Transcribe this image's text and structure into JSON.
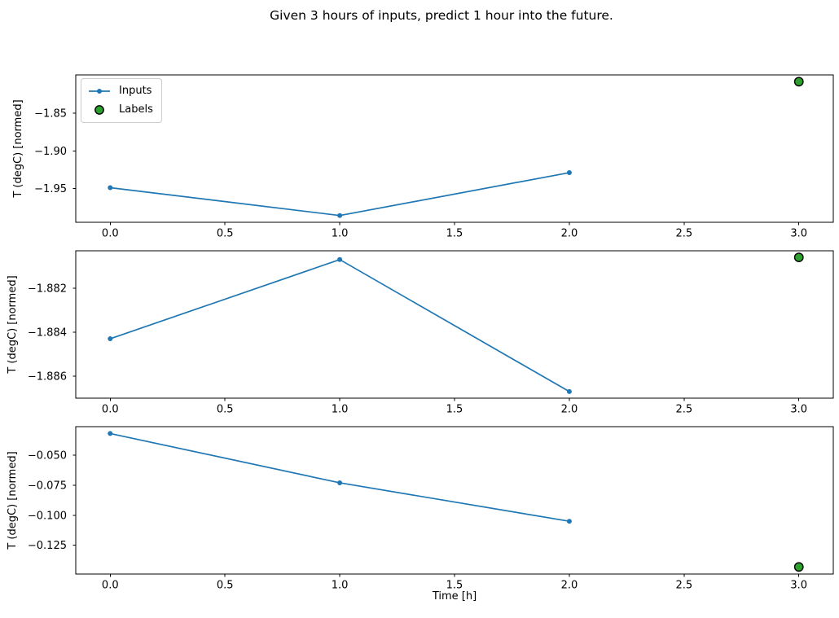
{
  "title": "Given 3 hours of inputs, predict 1 hour into the future.",
  "xlabel": "Time [h]",
  "legend": {
    "items": [
      {
        "label": "Inputs",
        "marker": "blue-line-with-dot"
      },
      {
        "label": "Labels",
        "marker": "green-circle"
      }
    ]
  },
  "colors": {
    "inputs": "#1f77b4",
    "labels_fill": "#2ca02c",
    "labels_edge": "#000000",
    "axis": "#000000",
    "legend_border": "#cccccc"
  },
  "chart_data": [
    {
      "type": "line",
      "title": "",
      "xlabel": "",
      "ylabel": "T (degC) [normed]",
      "xlim": [
        -0.15,
        3.15
      ],
      "ylim": [
        -1.995,
        -1.799
      ],
      "grid": false,
      "legend_position": "upper left",
      "series": [
        {
          "name": "Inputs",
          "style": "line+marker",
          "x": [
            0,
            1,
            2
          ],
          "y": [
            -1.949,
            -1.986,
            -1.929
          ]
        },
        {
          "name": "Labels",
          "style": "scatter",
          "x": [
            3
          ],
          "y": [
            -1.808
          ]
        }
      ],
      "xticks": [
        {
          "v": 0.0,
          "label": "0.0"
        },
        {
          "v": 0.5,
          "label": "0.5"
        },
        {
          "v": 1.0,
          "label": "1.0"
        },
        {
          "v": 1.5,
          "label": "1.5"
        },
        {
          "v": 2.0,
          "label": "2.0"
        },
        {
          "v": 2.5,
          "label": "2.5"
        },
        {
          "v": 3.0,
          "label": "3.0"
        }
      ],
      "yticks": [
        {
          "v": -1.85,
          "label": "−1.85"
        },
        {
          "v": -1.9,
          "label": "−1.90"
        },
        {
          "v": -1.95,
          "label": "−1.95"
        }
      ]
    },
    {
      "type": "line",
      "title": "",
      "xlabel": "",
      "ylabel": "T (degC) [normed]",
      "xlim": [
        -0.15,
        3.15
      ],
      "ylim": [
        -1.887,
        -1.8803
      ],
      "grid": false,
      "legend_position": "none",
      "series": [
        {
          "name": "Inputs",
          "style": "line+marker",
          "x": [
            0,
            1,
            2
          ],
          "y": [
            -1.8843,
            -1.8807,
            -1.8867
          ]
        },
        {
          "name": "Labels",
          "style": "scatter",
          "x": [
            3
          ],
          "y": [
            -1.8806
          ]
        }
      ],
      "xticks": [
        {
          "v": 0.0,
          "label": "0.0"
        },
        {
          "v": 0.5,
          "label": "0.5"
        },
        {
          "v": 1.0,
          "label": "1.0"
        },
        {
          "v": 1.5,
          "label": "1.5"
        },
        {
          "v": 2.0,
          "label": "2.0"
        },
        {
          "v": 2.5,
          "label": "2.5"
        },
        {
          "v": 3.0,
          "label": "3.0"
        }
      ],
      "yticks": [
        {
          "v": -1.882,
          "label": "−1.882"
        },
        {
          "v": -1.884,
          "label": "−1.884"
        },
        {
          "v": -1.886,
          "label": "−1.886"
        }
      ]
    },
    {
      "type": "line",
      "title": "",
      "xlabel": "Time [h]",
      "ylabel": "T (degC) [normed]",
      "xlim": [
        -0.15,
        3.15
      ],
      "ylim": [
        -0.1489,
        -0.0263
      ],
      "grid": false,
      "legend_position": "none",
      "series": [
        {
          "name": "Inputs",
          "style": "line+marker",
          "x": [
            0,
            1,
            2
          ],
          "y": [
            -0.032,
            -0.073,
            -0.105
          ]
        },
        {
          "name": "Labels",
          "style": "scatter",
          "x": [
            3
          ],
          "y": [
            -0.143
          ]
        }
      ],
      "xticks": [
        {
          "v": 0.0,
          "label": "0.0"
        },
        {
          "v": 0.5,
          "label": "0.5"
        },
        {
          "v": 1.0,
          "label": "1.0"
        },
        {
          "v": 1.5,
          "label": "1.5"
        },
        {
          "v": 2.0,
          "label": "2.0"
        },
        {
          "v": 2.5,
          "label": "2.5"
        },
        {
          "v": 3.0,
          "label": "3.0"
        }
      ],
      "yticks": [
        {
          "v": -0.05,
          "label": "−0.050"
        },
        {
          "v": -0.075,
          "label": "−0.075"
        },
        {
          "v": -0.1,
          "label": "−0.100"
        },
        {
          "v": -0.125,
          "label": "−0.125"
        }
      ]
    }
  ]
}
